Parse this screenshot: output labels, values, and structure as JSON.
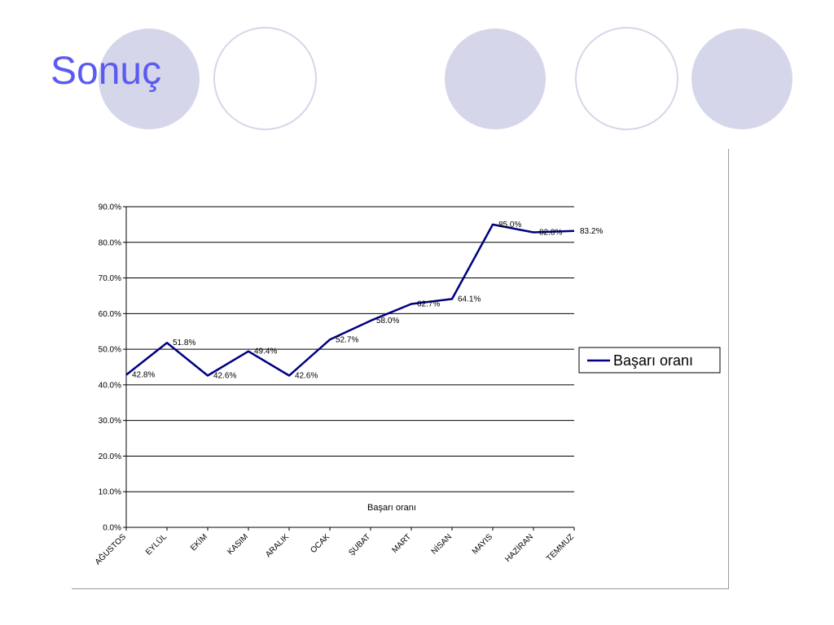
{
  "slide": {
    "title": "Sonuç"
  },
  "colors": {
    "title": "#5b5bf0",
    "series": "#000080",
    "decor": "#d6d6ea"
  },
  "chart_data": {
    "type": "line",
    "xlabel": "Başarı oranı",
    "ylabel": "",
    "ylim": [
      0,
      90
    ],
    "y_tick_step": 10,
    "y_tick_labels": [
      "0.0%",
      "10.0%",
      "20.0%",
      "30.0%",
      "40.0%",
      "50.0%",
      "60.0%",
      "70.0%",
      "80.0%",
      "90.0%"
    ],
    "grid": true,
    "legend_position": "right",
    "categories": [
      "AĞUSTOS",
      "EYLÜL",
      "EKİM",
      "KASIM",
      "ARALIK",
      "OCAK",
      "ŞUBAT",
      "MART",
      "NİSAN",
      "MAYIS",
      "HAZİRAN",
      "TEMMUZ"
    ],
    "series": [
      {
        "name": "Başarı oranı",
        "values": [
          42.8,
          51.8,
          42.6,
          49.4,
          42.6,
          52.7,
          58.0,
          62.7,
          64.1,
          85.0,
          82.8,
          83.2
        ],
        "labels": [
          "42.8%",
          "51.8%",
          "42.6%",
          "49.4%",
          "42.6%",
          "52.7%",
          "58.0%",
          "62.7%",
          "64.1%",
          "85.0%",
          "82.8%",
          "83.2%"
        ]
      }
    ]
  }
}
